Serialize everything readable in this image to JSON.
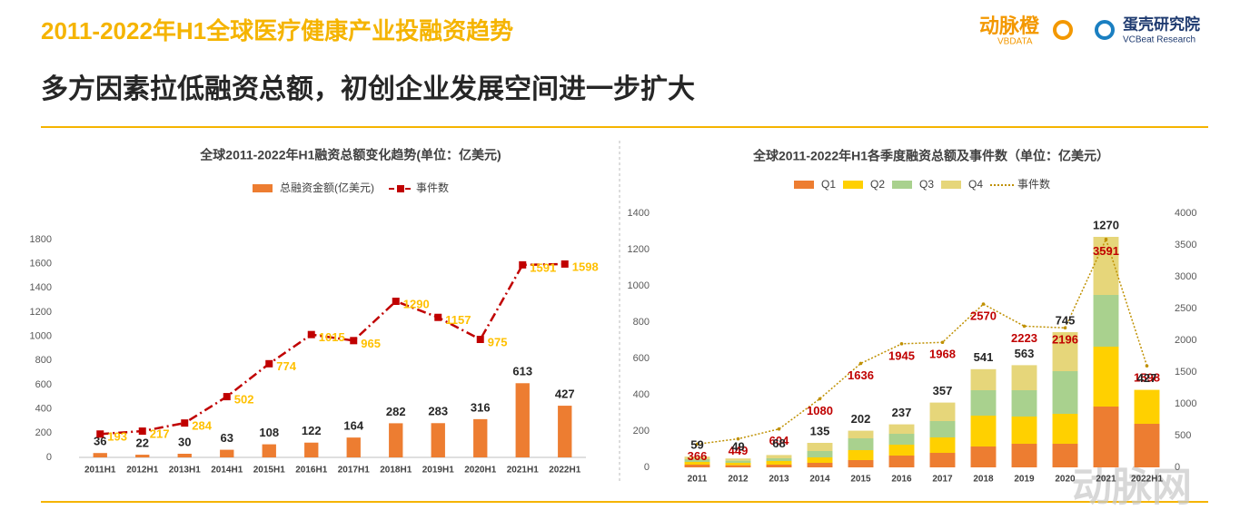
{
  "header": {
    "title": "2011-2022年H1全球医疗健康产业投融资趋势",
    "subtitle": "多方因素拉低融资总额，初创企业发展空间进一步扩大",
    "brand1": "动脉橙",
    "brand1_sub": "VBDATA",
    "brand2": "蛋壳研究院",
    "brand2_sub": "VCBeat Research",
    "watermark": "动脉网"
  },
  "chart_data": [
    {
      "type": "combo",
      "title": "全球2011-2022年H1融资总额变化趋势(单位：亿美元)",
      "categories": [
        "2011H1",
        "2012H1",
        "2013H1",
        "2014H1",
        "2015H1",
        "2016H1",
        "2017H1",
        "2018H1",
        "2019H1",
        "2020H1",
        "2021H1",
        "2022H1"
      ],
      "series": [
        {
          "name": "总融资金额(亿美元)",
          "type": "bar",
          "color": "#ed7d31",
          "label_color": "#262626",
          "values": [
            36,
            22,
            30,
            63,
            108,
            122,
            164,
            282,
            283,
            316,
            613,
            427
          ]
        },
        {
          "name": "事件数",
          "type": "line",
          "color": "#c00000",
          "label_color": "#ffc000",
          "values": [
            193,
            217,
            284,
            502,
            774,
            1015,
            965,
            1290,
            1157,
            975,
            1591,
            1598
          ]
        }
      ],
      "ylim": [
        0,
        1800
      ],
      "yticks": [
        0,
        200,
        400,
        600,
        800,
        1000,
        1200,
        1400,
        1600,
        1800
      ]
    },
    {
      "type": "combo",
      "title": "全球2011-2022年H1各季度融资总额及事件数（单位：亿美元）",
      "categories": [
        "2011",
        "2012",
        "2013",
        "2014",
        "2015",
        "2016",
        "2017",
        "2018",
        "2019",
        "2020",
        "2021",
        "2022H1"
      ],
      "series": [
        {
          "name": "Q1",
          "type": "bar",
          "stacked": true,
          "color": "#ed7d31",
          "values": [
            15,
            12,
            15,
            25,
            40,
            65,
            80,
            115,
            130,
            130,
            335,
            240
          ]
        },
        {
          "name": "Q2",
          "type": "bar",
          "stacked": true,
          "color": "#ffd000",
          "values": [
            15,
            13,
            20,
            30,
            55,
            60,
            85,
            170,
            150,
            165,
            330,
            187
          ]
        },
        {
          "name": "Q3",
          "type": "bar",
          "stacked": true,
          "color": "#a9d18e",
          "values": [
            15,
            12,
            15,
            35,
            65,
            60,
            90,
            140,
            145,
            235,
            285,
            null
          ]
        },
        {
          "name": "Q4",
          "type": "bar",
          "stacked": true,
          "color": "#e6d67a",
          "values": [
            14,
            12,
            18,
            45,
            42,
            52,
            102,
            116,
            138,
            215,
            320,
            null
          ]
        },
        {
          "name": "事件数",
          "type": "line",
          "axis": "y2",
          "color": "#bf9000",
          "label_color": "#c00000",
          "values": [
            366,
            449,
            604,
            1080,
            1636,
            1945,
            1968,
            2570,
            2223,
            2196,
            3591,
            1598
          ]
        }
      ],
      "totals": [
        59,
        49,
        68,
        135,
        202,
        237,
        357,
        541,
        563,
        745,
        1270,
        427
      ],
      "ylim": [
        0,
        1400
      ],
      "yticks": [
        0,
        200,
        400,
        600,
        800,
        1000,
        1200,
        1400
      ],
      "y2lim": [
        0,
        4000
      ],
      "y2ticks": [
        0,
        500,
        1000,
        1500,
        2000,
        2500,
        3000,
        3500,
        4000
      ]
    }
  ]
}
